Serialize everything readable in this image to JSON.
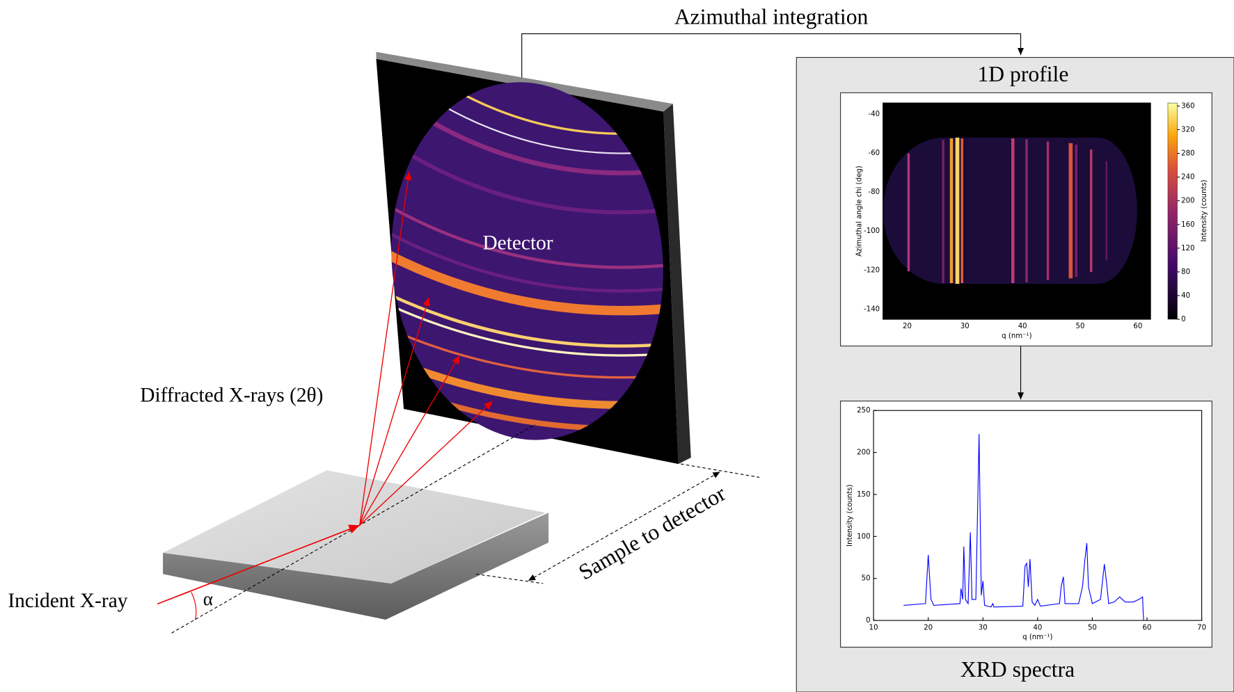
{
  "labels": {
    "azimuthal": "Azimuthal integration",
    "profile": "1D profile",
    "detector": "Detector",
    "diffracted": "Diffracted X-rays (2θ)",
    "incident": "Incident X-ray",
    "alpha": "α",
    "distance": "Sample to detector",
    "spectra": "XRD spectra"
  },
  "profile_plot": {
    "type": "heatmap",
    "xlabel": "q (nm⁻¹)",
    "ylabel": "Azimuthal angle chi (deg)",
    "colorbar_label": "Intensity (counts)",
    "xlim": [
      15.8,
      62.2
    ],
    "xticks": [
      20,
      30,
      40,
      50,
      60
    ],
    "ylim": [
      -145.2,
      -34.4
    ],
    "yticks": [
      -40,
      -60,
      -80,
      -100,
      -120,
      -140
    ],
    "clim": [
      0,
      365
    ],
    "cticks": [
      0,
      40,
      80,
      120,
      160,
      200,
      240,
      280,
      320,
      360
    ]
  },
  "spectrum_plot": {
    "type": "line",
    "xlabel": "q (nm⁻¹)",
    "ylabel": "Intensity (counts)",
    "color": "#0000ff",
    "xlim": [
      10,
      70
    ],
    "xticks": [
      10,
      20,
      30,
      40,
      50,
      60,
      70
    ],
    "ylim": [
      0,
      250
    ],
    "yticks": [
      0,
      50,
      100,
      150,
      200,
      250
    ],
    "x": [
      15.5,
      19.5,
      20.0,
      20.5,
      21.0,
      25.8,
      26.0,
      26.3,
      26.5,
      26.8,
      27.3,
      27.7,
      28.0,
      28.7,
      29.3,
      29.7,
      30.0,
      30.3,
      31.5,
      31.8,
      32.0,
      37.3,
      37.7,
      38.0,
      38.3,
      38.6,
      39.0,
      39.5,
      40.0,
      40.5,
      44.0,
      44.3,
      44.7,
      45.0,
      47.5,
      48.2,
      48.6,
      49.0,
      49.3,
      50.0,
      51.5,
      52.2,
      52.6,
      53.0,
      54.0,
      55.0,
      55.5,
      56.0,
      57.5,
      58.5,
      59.2,
      59.3,
      59.4
    ],
    "values": [
      18,
      20,
      78,
      25,
      18,
      20,
      38,
      25,
      88,
      25,
      20,
      105,
      25,
      25,
      222,
      30,
      47,
      18,
      16,
      20,
      16,
      17,
      65,
      68,
      40,
      73,
      22,
      18,
      25,
      17,
      20,
      40,
      52,
      20,
      20,
      40,
      70,
      92,
      40,
      20,
      25,
      67,
      45,
      20,
      22,
      28,
      25,
      22,
      22,
      25,
      28,
      10,
      0
    ]
  }
}
